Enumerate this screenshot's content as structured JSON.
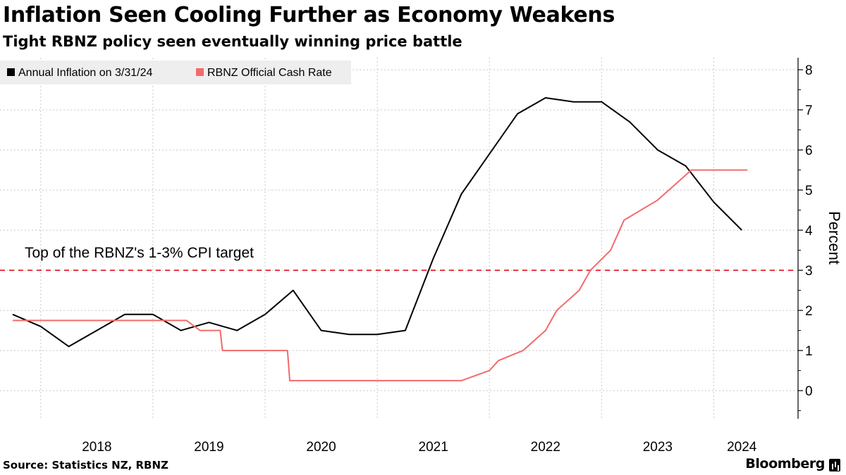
{
  "header": {
    "title": "Inflation Seen Cooling Further as Economy Weakens",
    "subtitle": "Tight RBNZ policy seen eventually winning price battle"
  },
  "footer": {
    "source": "Source: Statistics NZ, RBNZ",
    "brand": "Bloomberg"
  },
  "colors": {
    "inflation": "#000000",
    "ocr": "#f26b6b",
    "target": "#e8323e",
    "grid": "#c8c8c8",
    "legend_bg": "#eeeeee"
  },
  "chart_data": {
    "type": "line",
    "ylabel": "Percent",
    "ylim": [
      -0.7,
      8.3
    ],
    "yticks": [
      0,
      1,
      2,
      3,
      4,
      5,
      6,
      7,
      8
    ],
    "xlim": [
      2017.75,
      2024.5
    ],
    "year_labels": [
      "2018",
      "2019",
      "2020",
      "2021",
      "2022",
      "2023",
      "2024"
    ],
    "year_gridlines": [
      2018,
      2019,
      2020,
      2021,
      2022,
      2023,
      2024
    ],
    "legend": [
      "Annual Inflation on 3/31/24",
      "RBNZ Official Cash Rate"
    ],
    "annotation": {
      "text": "Top of the RBNZ's 1-3% CPI target",
      "y": 3
    },
    "series": [
      {
        "name": "Annual Inflation on 3/31/24",
        "points": [
          [
            2017.75,
            1.9
          ],
          [
            2018.0,
            1.6
          ],
          [
            2018.25,
            1.1
          ],
          [
            2018.5,
            1.5
          ],
          [
            2018.75,
            1.9
          ],
          [
            2019.0,
            1.9
          ],
          [
            2019.25,
            1.5
          ],
          [
            2019.5,
            1.7
          ],
          [
            2019.75,
            1.5
          ],
          [
            2020.0,
            1.9
          ],
          [
            2020.25,
            2.5
          ],
          [
            2020.5,
            1.5
          ],
          [
            2020.75,
            1.4
          ],
          [
            2021.0,
            1.4
          ],
          [
            2021.25,
            1.5
          ],
          [
            2021.5,
            3.3
          ],
          [
            2021.75,
            4.9
          ],
          [
            2022.0,
            5.9
          ],
          [
            2022.25,
            6.9
          ],
          [
            2022.5,
            7.3
          ],
          [
            2022.75,
            7.2
          ],
          [
            2023.0,
            7.2
          ],
          [
            2023.25,
            6.7
          ],
          [
            2023.5,
            6.0
          ],
          [
            2023.75,
            5.6
          ],
          [
            2024.0,
            4.7
          ],
          [
            2024.25,
            4.0
          ]
        ]
      },
      {
        "name": "RBNZ Official Cash Rate",
        "points": [
          [
            2017.75,
            1.75
          ],
          [
            2019.3,
            1.75
          ],
          [
            2019.42,
            1.5
          ],
          [
            2019.6,
            1.5
          ],
          [
            2019.62,
            1.0
          ],
          [
            2020.2,
            1.0
          ],
          [
            2020.22,
            0.25
          ],
          [
            2021.75,
            0.25
          ],
          [
            2022.0,
            0.5
          ],
          [
            2022.08,
            0.75
          ],
          [
            2022.3,
            1.0
          ],
          [
            2022.5,
            1.5
          ],
          [
            2022.6,
            2.0
          ],
          [
            2022.8,
            2.5
          ],
          [
            2022.9,
            3.0
          ],
          [
            2023.08,
            3.5
          ],
          [
            2023.2,
            4.25
          ],
          [
            2023.5,
            4.75
          ],
          [
            2023.7,
            5.25
          ],
          [
            2023.8,
            5.5
          ],
          [
            2024.3,
            5.5
          ]
        ]
      }
    ]
  }
}
